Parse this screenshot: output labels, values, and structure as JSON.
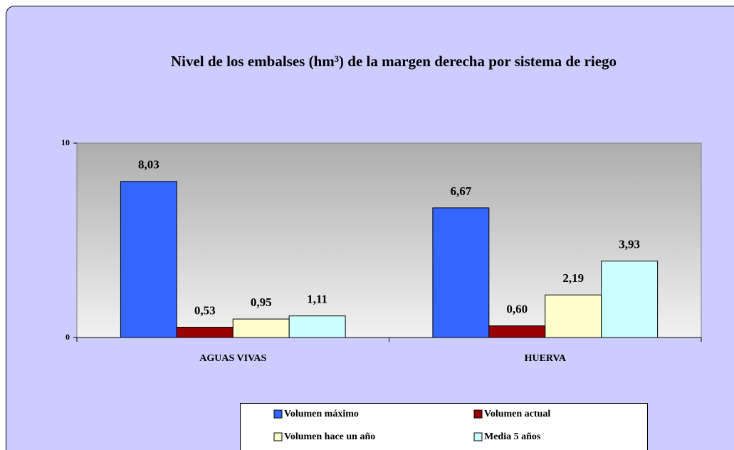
{
  "chart_data": {
    "type": "bar",
    "title": "Nivel de los embalses (hm³) de la margen derecha por sistema de riego",
    "categories": [
      "AGUAS VIVAS",
      "HUERVA"
    ],
    "series": [
      {
        "name": "Volumen máximo",
        "color": "#3366ff",
        "values": [
          8.03,
          6.67
        ],
        "value_labels": [
          "8,03",
          "6,67"
        ]
      },
      {
        "name": "Volumen actual",
        "color": "#990000",
        "values": [
          0.53,
          0.6
        ],
        "value_labels": [
          "0,53",
          "0,60"
        ]
      },
      {
        "name": "Volumen hace un año",
        "color": "#ffffcc",
        "values": [
          0.95,
          2.19
        ],
        "value_labels": [
          "0,95",
          "2,19"
        ]
      },
      {
        "name": "Media 5 años",
        "color": "#ccffff",
        "values": [
          1.11,
          3.93
        ],
        "value_labels": [
          "1,11",
          "3,93"
        ]
      }
    ],
    "ylim": [
      0,
      10
    ],
    "yticks": [
      0,
      10
    ],
    "grid": false
  }
}
